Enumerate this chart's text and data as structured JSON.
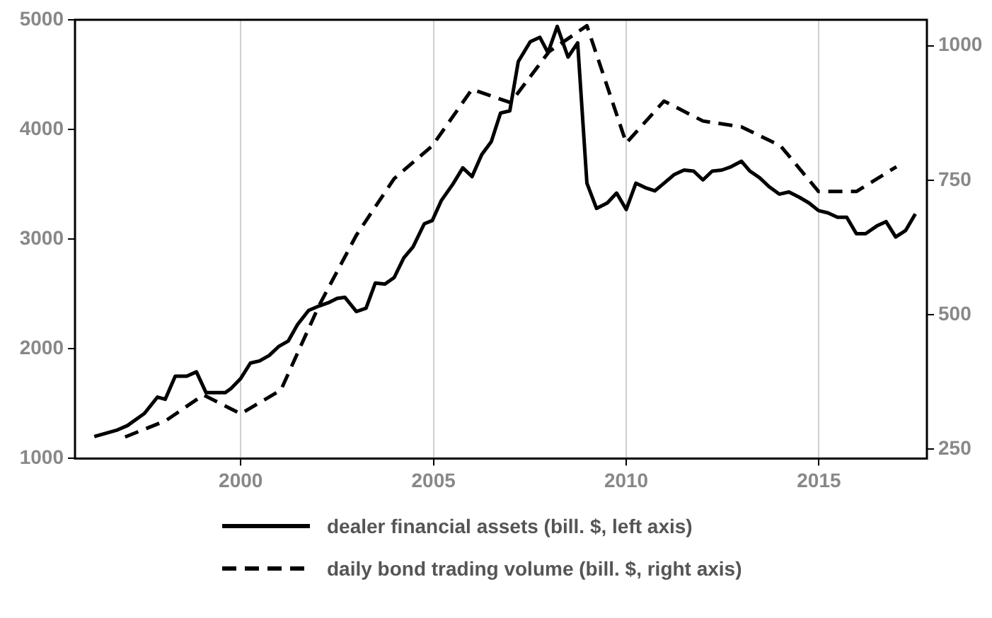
{
  "chart_data": {
    "type": "line",
    "xlim": [
      1995.7,
      2017.8
    ],
    "xticks": [
      2000,
      2005,
      2010,
      2015
    ],
    "ylim": [
      1000,
      5000
    ],
    "yticks": [
      1000,
      2000,
      3000,
      4000,
      5000
    ],
    "y2lim": [
      233,
      1048
    ],
    "y2ticks": [
      250,
      500,
      750,
      1000
    ],
    "grid": "x",
    "legend": "bottom",
    "marker": "none",
    "series": [
      {
        "name": "dealer financial assets (bill. $, left axis)",
        "color": "#000000",
        "line_style": "solid",
        "x": [
          1996.2,
          1996.8,
          1997.06,
          1997.5,
          1997.84,
          1998.04,
          1998.3,
          1998.6,
          1998.85,
          1999.1,
          1999.6,
          1999.75,
          2000.0,
          2000.25,
          2000.49,
          2000.74,
          2000.98,
          2001.23,
          2001.47,
          2001.76,
          2002.03,
          2002.27,
          2002.5,
          2002.7,
          2003.0,
          2003.25,
          2003.49,
          2003.74,
          2003.98,
          2004.23,
          2004.47,
          2004.76,
          2004.97,
          2005.2,
          2005.5,
          2005.76,
          2006.0,
          2006.25,
          2006.5,
          2006.74,
          2006.98,
          2007.2,
          2007.51,
          2007.76,
          2007.97,
          2008.21,
          2008.49,
          2008.74,
          2008.98,
          2009.23,
          2009.51,
          2009.75,
          2010.0,
          2010.25,
          2010.49,
          2010.74,
          2010.98,
          2011.25,
          2011.5,
          2011.75,
          2011.99,
          2012.23,
          2012.48,
          2012.72,
          2012.99,
          2013.21,
          2013.46,
          2013.7,
          2013.97,
          2014.22,
          2014.5,
          2014.74,
          2014.99,
          2015.23,
          2015.48,
          2015.72,
          2015.97,
          2016.21,
          2016.5,
          2016.74,
          2016.99,
          2017.25,
          2017.5
        ],
        "values": [
          1200,
          1260,
          1300,
          1410,
          1560,
          1540,
          1750,
          1750,
          1790,
          1600,
          1600,
          1640,
          1730,
          1870,
          1890,
          1940,
          2020,
          2070,
          2220,
          2350,
          2390,
          2420,
          2460,
          2470,
          2340,
          2370,
          2600,
          2590,
          2650,
          2830,
          2930,
          3140,
          3170,
          3350,
          3500,
          3650,
          3570,
          3770,
          3890,
          4150,
          4170,
          4620,
          4800,
          4840,
          4700,
          4940,
          4660,
          4790,
          3510,
          3280,
          3330,
          3420,
          3270,
          3510,
          3470,
          3440,
          3510,
          3590,
          3630,
          3620,
          3540,
          3620,
          3630,
          3660,
          3710,
          3620,
          3560,
          3480,
          3410,
          3430,
          3380,
          3330,
          3260,
          3240,
          3200,
          3200,
          3050,
          3050,
          3120,
          3160,
          3020,
          3080,
          3230
        ]
      },
      {
        "name": "daily bond trading volume (bill. $, right axis)",
        "color": "#000000",
        "line_style": "dashed",
        "axis": "y2",
        "x": [
          1997.0,
          1998.05,
          1999.03,
          2000.0,
          2001.04,
          2002.03,
          2003.0,
          2003.98,
          2004.97,
          2006.0,
          2007.0,
          2008.0,
          2008.98,
          2010.0,
          2010.98,
          2011.99,
          2012.99,
          2014.0,
          2014.99,
          2015.97,
          2017.01
        ],
        "values": [
          273,
          303,
          351,
          316,
          360,
          517,
          648,
          753,
          814,
          919,
          894,
          989,
          1037,
          819,
          897,
          860,
          849,
          814,
          729,
          729,
          775
        ]
      }
    ]
  }
}
